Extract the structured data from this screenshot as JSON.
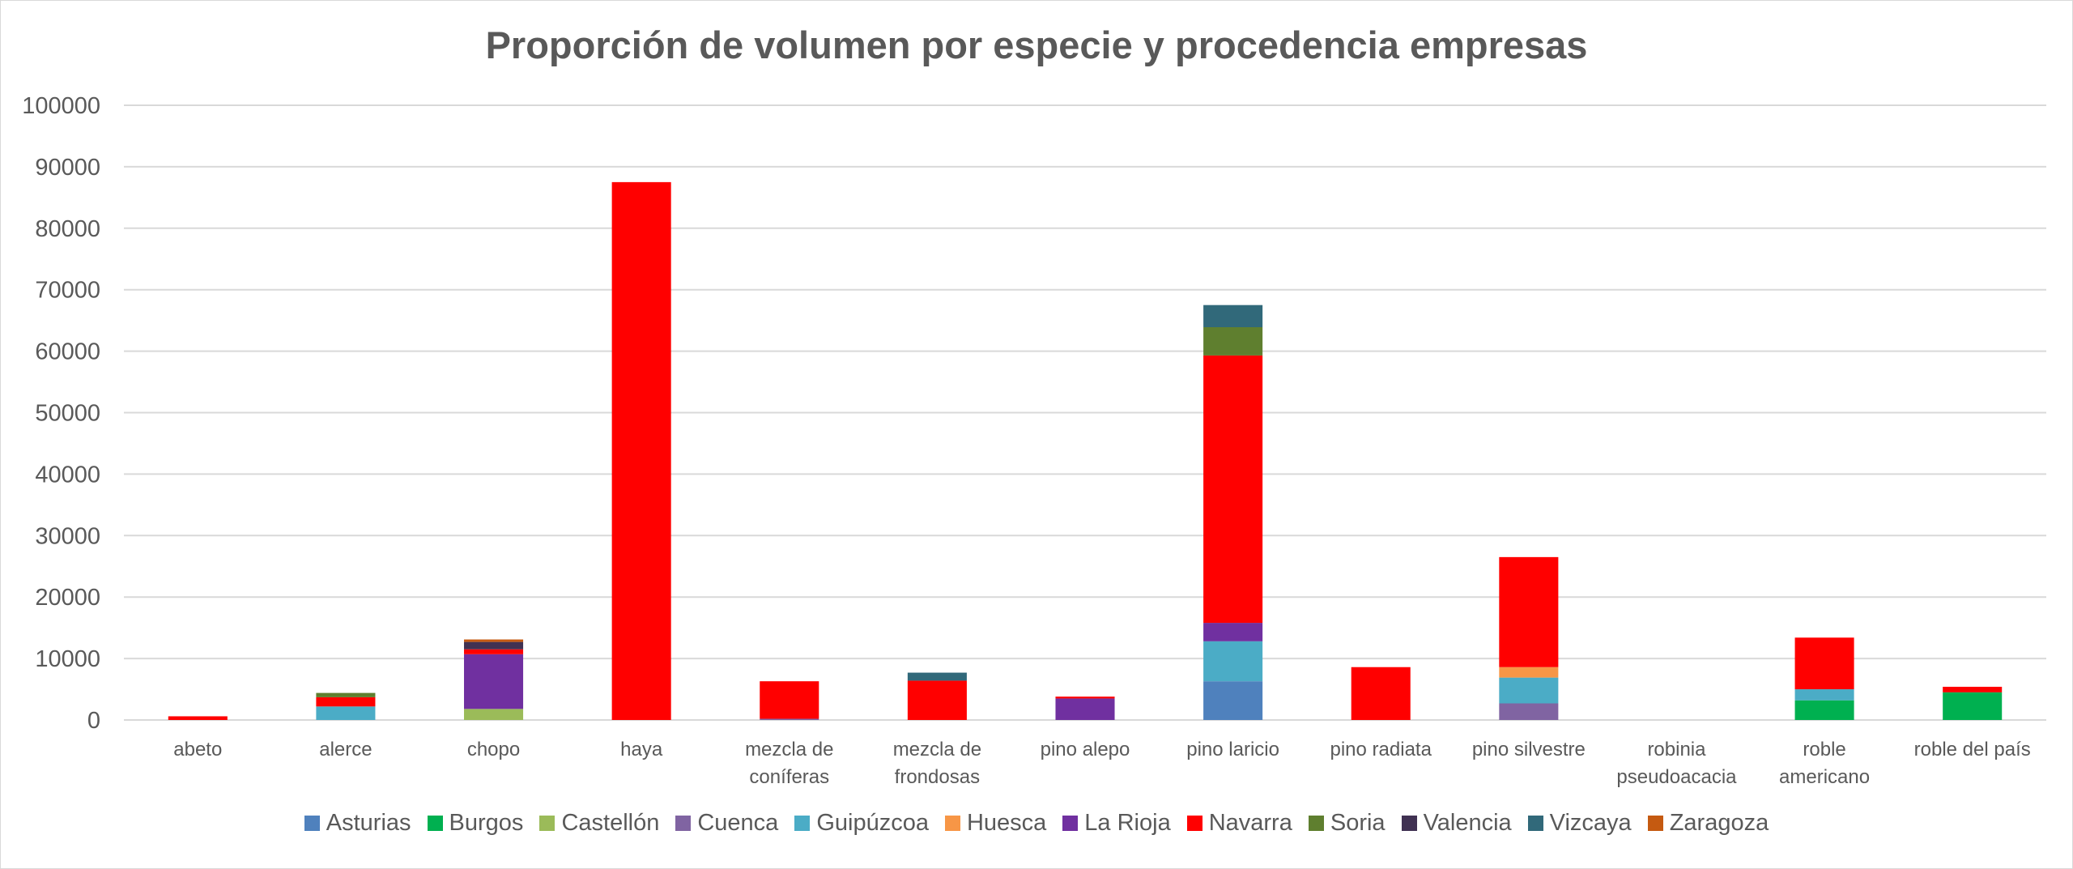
{
  "chart_data": {
    "type": "bar",
    "stacked": true,
    "title": "Proporción de volumen por especie y procedencia empresas",
    "xlabel": "",
    "ylabel": "",
    "ylim": [
      0,
      100000
    ],
    "yticks": [
      0,
      10000,
      20000,
      30000,
      40000,
      50000,
      60000,
      70000,
      80000,
      90000,
      100000
    ],
    "grid": true,
    "legend_position": "bottom",
    "categories": [
      [
        "abeto"
      ],
      [
        "alerce"
      ],
      [
        "chopo"
      ],
      [
        "haya"
      ],
      [
        "mezcla de",
        "coníferas"
      ],
      [
        "mezcla de",
        "frondosas"
      ],
      [
        "pino alepo"
      ],
      [
        "pino laricio"
      ],
      [
        "pino radiata"
      ],
      [
        "pino silvestre"
      ],
      [
        "robinia",
        "pseudoacacia"
      ],
      [
        "roble",
        "americano"
      ],
      [
        "roble del país"
      ]
    ],
    "series": [
      {
        "name": "Asturias",
        "color": "#4f81bd",
        "values": [
          0,
          0,
          0,
          0,
          0,
          0,
          0,
          6300,
          0,
          0,
          0,
          0,
          0
        ]
      },
      {
        "name": "Burgos",
        "color": "#00b050",
        "values": [
          0,
          0,
          0,
          0,
          0,
          0,
          0,
          0,
          0,
          0,
          0,
          3200,
          4500
        ]
      },
      {
        "name": "Castellón",
        "color": "#9bbb59",
        "values": [
          0,
          0,
          1800,
          0,
          0,
          0,
          0,
          0,
          0,
          0,
          0,
          0,
          0
        ]
      },
      {
        "name": "Cuenca",
        "color": "#8064a2",
        "values": [
          0,
          0,
          0,
          0,
          200,
          0,
          0,
          0,
          0,
          2700,
          0,
          0,
          0
        ]
      },
      {
        "name": "Guipúzcoa",
        "color": "#4bacc6",
        "values": [
          0,
          2200,
          0,
          0,
          0,
          0,
          0,
          6500,
          0,
          4200,
          0,
          1800,
          0
        ]
      },
      {
        "name": "Huesca",
        "color": "#f79646",
        "values": [
          0,
          0,
          0,
          0,
          0,
          0,
          0,
          0,
          0,
          1700,
          0,
          0,
          0
        ]
      },
      {
        "name": "La Rioja",
        "color": "#7030a0",
        "values": [
          0,
          0,
          8900,
          0,
          0,
          0,
          3500,
          3000,
          0,
          0,
          0,
          0,
          0
        ]
      },
      {
        "name": "Navarra",
        "color": "#ff0000",
        "values": [
          600,
          1500,
          800,
          87500,
          6100,
          6400,
          300,
          43500,
          8600,
          17900,
          0,
          8400,
          900
        ]
      },
      {
        "name": "Soria",
        "color": "#5f7f2f",
        "values": [
          0,
          700,
          0,
          0,
          0,
          0,
          0,
          4600,
          0,
          0,
          0,
          0,
          0
        ]
      },
      {
        "name": "Valencia",
        "color": "#403152",
        "values": [
          0,
          0,
          1200,
          0,
          0,
          0,
          0,
          0,
          0,
          0,
          0,
          0,
          0
        ]
      },
      {
        "name": "Vizcaya",
        "color": "#31697a",
        "values": [
          0,
          0,
          0,
          0,
          0,
          1300,
          0,
          3600,
          0,
          0,
          0,
          0,
          0
        ]
      },
      {
        "name": "Zaragoza",
        "color": "#c55a11",
        "values": [
          0,
          0,
          400,
          0,
          0,
          0,
          0,
          0,
          0,
          0,
          0,
          0,
          0
        ]
      }
    ]
  }
}
